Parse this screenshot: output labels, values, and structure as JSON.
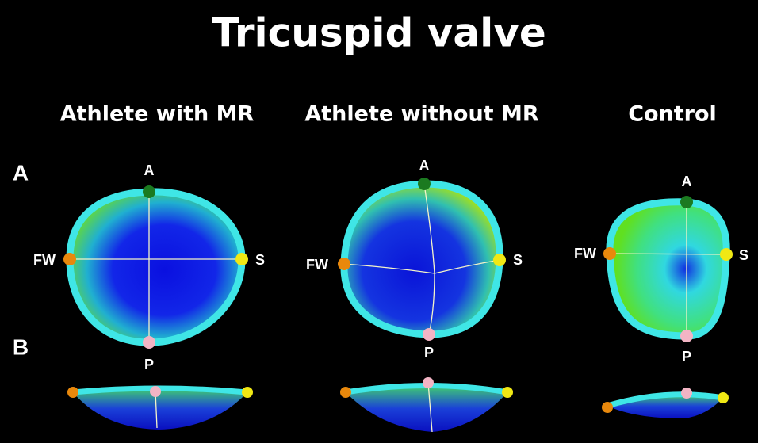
{
  "title": "Tricuspid valve",
  "panel_labels": [
    "A",
    "B"
  ],
  "columns": [
    {
      "heading": "Athlete with MR",
      "landmarks": {
        "anterior": "A",
        "free_wall": "FW",
        "septal": "S",
        "posterior": "P"
      }
    },
    {
      "heading": "Athlete without MR",
      "landmarks": {
        "anterior": "A",
        "free_wall": "FW",
        "septal": "S",
        "posterior": "P"
      }
    },
    {
      "heading": "Control",
      "landmarks": {
        "anterior": "A",
        "free_wall": "FW",
        "septal": "S",
        "posterior": "P"
      }
    }
  ]
}
